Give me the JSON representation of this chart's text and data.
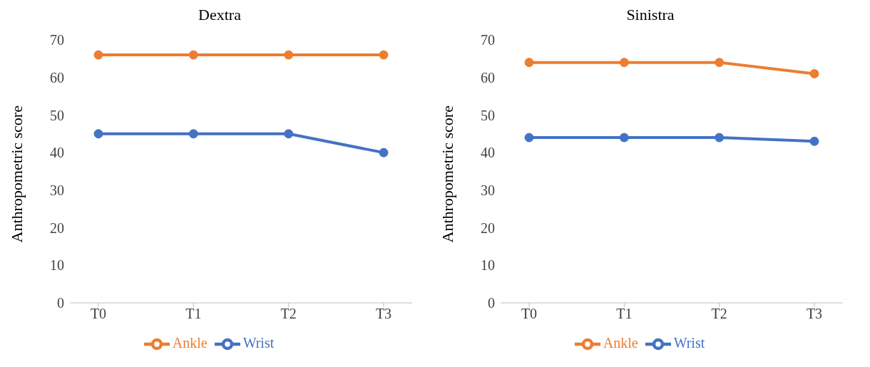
{
  "chart_data": [
    {
      "type": "line",
      "title": "Dextra",
      "ylabel": "Anthropometric score",
      "categories": [
        "T0",
        "T1",
        "T2",
        "T3"
      ],
      "ylim": [
        0,
        70
      ],
      "yticks": [
        0,
        10,
        20,
        30,
        40,
        50,
        60,
        70
      ],
      "marker": "circle",
      "legend": "bottom",
      "series": [
        {
          "name": "Wrist",
          "color": "#4472c4",
          "values": [
            45,
            45,
            45,
            40
          ]
        },
        {
          "name": "Ankle",
          "color": "#ed7d31",
          "values": [
            66,
            66,
            66,
            66
          ]
        }
      ]
    },
    {
      "type": "line",
      "title": "Sinistra",
      "ylabel": "Anthropometric score",
      "categories": [
        "T0",
        "T1",
        "T2",
        "T3"
      ],
      "ylim": [
        0,
        70
      ],
      "yticks": [
        0,
        10,
        20,
        30,
        40,
        50,
        60,
        70
      ],
      "marker": "circle",
      "legend": "bottom",
      "series": [
        {
          "name": "Wrist",
          "color": "#4472c4",
          "values": [
            44,
            44,
            44,
            43
          ]
        },
        {
          "name": "Ankle",
          "color": "#ed7d31",
          "values": [
            64,
            64,
            64,
            61
          ]
        }
      ]
    }
  ]
}
